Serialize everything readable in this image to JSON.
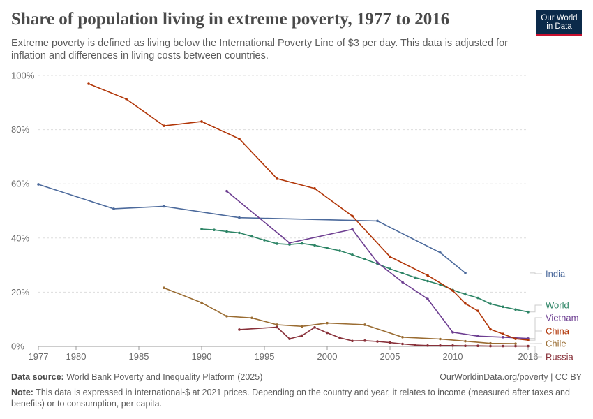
{
  "header": {
    "title": "Share of population living in extreme poverty, 1977 to 2016",
    "subtitle": "Extreme poverty is defined as living below the International Poverty Line of $3 per day. This data is adjusted for inflation and differences in living costs between countries.",
    "logo_line1": "Our World",
    "logo_line2": "in Data"
  },
  "footer": {
    "source_label": "Data source:",
    "source_text": "World Bank Poverty and Inequality Platform (2025)",
    "credit": "OurWorldinData.org/poverty | CC BY",
    "note_label": "Note:",
    "note_text": "This data is expressed in international-$ at 2021 prices. Depending on the country and year, it relates to income (measured after taxes and benefits) or to consumption, per capita."
  },
  "chart_data": {
    "type": "line",
    "title": "Share of population living in extreme poverty, 1977 to 2016",
    "xlabel": "",
    "ylabel": "",
    "xlim": [
      1977,
      2016
    ],
    "ylim": [
      0,
      100
    ],
    "x_ticks": [
      1977,
      1980,
      1985,
      1990,
      1995,
      2000,
      2005,
      2010,
      2016
    ],
    "y_ticks": [
      0,
      20,
      40,
      60,
      80,
      100
    ],
    "y_tick_labels": [
      "0%",
      "20%",
      "40%",
      "60%",
      "80%",
      "100%"
    ],
    "grid": "horizontal dashed",
    "legend": "right (inline labels)",
    "series": [
      {
        "name": "India",
        "color": "#4c6a9c",
        "x": [
          1977,
          1983,
          1987,
          1993,
          2004,
          2009,
          2011
        ],
        "y": [
          59.8,
          50.8,
          51.7,
          47.5,
          46.3,
          34.6,
          27.1
        ]
      },
      {
        "name": "World",
        "color": "#2c8465",
        "x": [
          1990,
          1991,
          1992,
          1993,
          1994,
          1995,
          1996,
          1997,
          1998,
          1999,
          2000,
          2001,
          2002,
          2003,
          2004,
          2005,
          2006,
          2007,
          2008,
          2009,
          2010,
          2011,
          2012,
          2013,
          2014,
          2015,
          2016
        ],
        "y": [
          43.3,
          43.0,
          42.4,
          41.9,
          40.6,
          39.2,
          37.9,
          37.6,
          38.0,
          37.3,
          36.3,
          35.3,
          33.8,
          32.2,
          30.5,
          28.6,
          27.0,
          25.4,
          24.1,
          22.8,
          20.8,
          19.2,
          17.9,
          15.7,
          14.6,
          13.6,
          12.7
        ]
      },
      {
        "name": "Vietnam",
        "color": "#6d3e91",
        "x": [
          1992,
          1997,
          2002,
          2004,
          2006,
          2008,
          2010,
          2012,
          2014,
          2016
        ],
        "y": [
          57.3,
          38.2,
          43.2,
          30.9,
          23.7,
          17.5,
          5.2,
          3.8,
          3.4,
          2.9
        ]
      },
      {
        "name": "China",
        "color": "#b13507",
        "x": [
          1981,
          1984,
          1987,
          1990,
          1993,
          1996,
          1999,
          2002,
          2005,
          2008,
          2010,
          2011,
          2012,
          2013,
          2014,
          2015,
          2016
        ],
        "y": [
          96.9,
          91.3,
          81.4,
          83.0,
          76.6,
          61.9,
          58.3,
          48.1,
          33.1,
          26.2,
          20.6,
          15.8,
          13.1,
          6.3,
          4.6,
          2.8,
          2.3
        ]
      },
      {
        "name": "Chile",
        "color": "#9a6c32",
        "x": [
          1987,
          1990,
          1992,
          1994,
          1996,
          1998,
          2000,
          2003,
          2006,
          2009,
          2011,
          2013,
          2015
        ],
        "y": [
          21.6,
          16.1,
          11.1,
          10.5,
          8.0,
          7.4,
          8.6,
          8.0,
          3.4,
          2.7,
          1.9,
          1.1,
          1.0
        ]
      },
      {
        "name": "Russia",
        "color": "#883039",
        "x": [
          1993,
          1996,
          1997,
          1998,
          1999,
          2000,
          2001,
          2002,
          2003,
          2004,
          2005,
          2006,
          2007,
          2008,
          2009,
          2010,
          2011,
          2012,
          2013,
          2014,
          2015,
          2016
        ],
        "y": [
          6.2,
          7.1,
          2.8,
          4.0,
          7.0,
          5.0,
          3.2,
          2.0,
          2.1,
          1.8,
          1.4,
          0.9,
          0.5,
          0.3,
          0.3,
          0.3,
          0.2,
          0.2,
          0.1,
          0.1,
          0.1,
          0.1
        ]
      }
    ]
  }
}
